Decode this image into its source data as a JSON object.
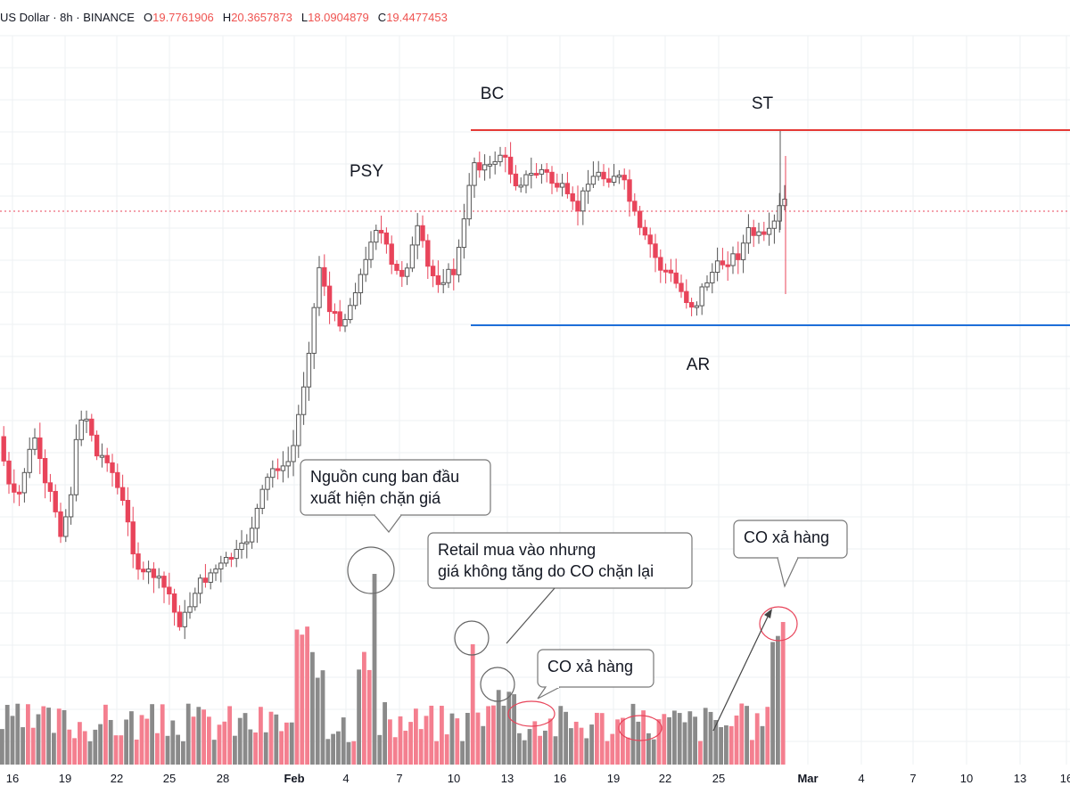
{
  "header": {
    "symbol_text": "US Dollar · 8h · BINANCE",
    "open_key": "O",
    "open": "19.7761906",
    "high_key": "H",
    "high": "20.3657873",
    "low_key": "L",
    "low": "18.0904879",
    "close_key": "C",
    "close": "19.4477453"
  },
  "chart_data": {
    "type": "candlestick",
    "timeframe": "8h",
    "x_ticks": [
      "16",
      "19",
      "22",
      "25",
      "28",
      "Feb",
      "4",
      "7",
      "10",
      "13",
      "16",
      "19",
      "22",
      "25",
      "Mar",
      "4",
      "7",
      "10",
      "13",
      "16"
    ],
    "wyckoff_labels": [
      "PSY",
      "BC",
      "AR",
      "ST"
    ],
    "levels": [
      {
        "name": "resistance",
        "color": "#e53935"
      },
      {
        "name": "support",
        "color": "#1e6fd9"
      }
    ],
    "annotations": [
      {
        "text_lines": [
          "Nguồn cung ban đầu",
          "xuất hiện chặn giá"
        ]
      },
      {
        "text_lines": [
          "Retail mua vào nhưng",
          "giá không tăng do CO chặn lại"
        ]
      },
      {
        "text_lines": [
          "CO xả hàng"
        ]
      },
      {
        "text_lines": [
          "CO xả hàng"
        ]
      }
    ],
    "colors": {
      "up": "#888888",
      "down": "#e8445a",
      "vol_up": "#8a8a8a",
      "vol_down": "#f47f8f"
    }
  }
}
